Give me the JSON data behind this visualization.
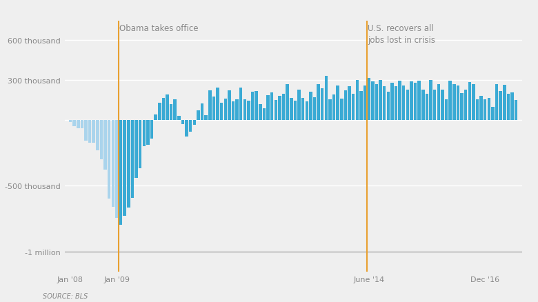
{
  "source_label": "SOURCE: BLS",
  "annotation1_text": "Obama takes office",
  "annotation2_text": "U.S. recovers all\njobs lost in crisis",
  "obama_takes_office_idx": 13,
  "us_recovers_idx": 77,
  "background_color": "#efefef",
  "bar_color_light": "#aad4ec",
  "bar_color_dark": "#3aaad4",
  "annotation_color": "#e8a030",
  "grid_color": "#ffffff",
  "text_color": "#888888",
  "yticks": [
    -1000000,
    -500000,
    0,
    300000,
    600000
  ],
  "ytick_labels": [
    "-1 million",
    "-500 thousand",
    "",
    "300 thousand",
    "600 thousand"
  ],
  "values": [
    -17000,
    -51000,
    -67000,
    -67000,
    -160000,
    -175000,
    -175000,
    -232000,
    -302000,
    -380000,
    -597000,
    -661000,
    -741000,
    -796000,
    -726000,
    -663000,
    -591000,
    -441000,
    -366000,
    -201000,
    -190000,
    -141000,
    42000,
    127000,
    163000,
    192000,
    120000,
    155000,
    27000,
    -35000,
    -130000,
    -91000,
    -41000,
    72000,
    121000,
    33000,
    221000,
    176000,
    244000,
    127000,
    161000,
    221000,
    141000,
    156000,
    241000,
    155000,
    143000,
    212000,
    217000,
    119000,
    85000,
    186000,
    205000,
    149000,
    178000,
    198000,
    271000,
    165000,
    143000,
    227000,
    163000,
    140000,
    214000,
    169000,
    267000,
    240000,
    329000,
    152000,
    190000,
    259000,
    158000,
    221000,
    252000,
    194000,
    298000,
    215000,
    257000,
    315000,
    290000,
    271000,
    300000,
    253000,
    211000,
    280000,
    252000,
    295000,
    256000,
    228000,
    291000,
    280000,
    293000,
    227000,
    196000,
    298000,
    225000,
    271000,
    228000,
    152000,
    295000,
    271000,
    260000,
    201000,
    225000,
    282000,
    271000,
    152000,
    178000,
    155000,
    162000,
    98000,
    271000,
    217000,
    262000,
    195000,
    208000,
    147000
  ]
}
